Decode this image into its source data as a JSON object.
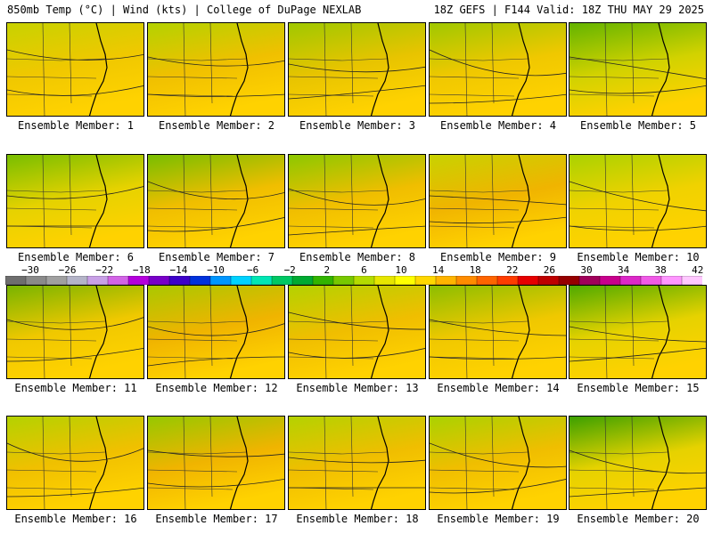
{
  "header": {
    "left": "850mb Temp (°C) | Wind (kts) | College of DuPage NEXLAB",
    "right": "18Z GEFS | F144 Valid: 18Z THU MAY 29 2025"
  },
  "members": [
    "Ensemble Member: 1",
    "Ensemble Member: 2",
    "Ensemble Member: 3",
    "Ensemble Member: 4",
    "Ensemble Member: 5",
    "Ensemble Member: 6",
    "Ensemble Member: 7",
    "Ensemble Member: 8",
    "Ensemble Member: 9",
    "Ensemble Member: 10",
    "Ensemble Member: 11",
    "Ensemble Member: 12",
    "Ensemble Member: 13",
    "Ensemble Member: 14",
    "Ensemble Member: 15",
    "Ensemble Member: 16",
    "Ensemble Member: 17",
    "Ensemble Member: 18",
    "Ensemble Member: 19",
    "Ensemble Member: 20"
  ],
  "colorbar": {
    "ticks": [
      "−30",
      "−26",
      "−22",
      "−18",
      "−14",
      "−10",
      "−6",
      "−2",
      "2",
      "6",
      "10",
      "14",
      "18",
      "22",
      "26",
      "30",
      "34",
      "38",
      "42"
    ],
    "colors": [
      "#6e6e6e",
      "#8a8a8a",
      "#a0a0a0",
      "#b4b4c8",
      "#c8a0e6",
      "#d264e6",
      "#b400dc",
      "#7800c8",
      "#3c00c8",
      "#0032dc",
      "#0096ff",
      "#00d2ff",
      "#00e6b4",
      "#00c864",
      "#00aa32",
      "#32b400",
      "#78c800",
      "#b4dc00",
      "#e6e600",
      "#ffff00",
      "#ffd700",
      "#ffb400",
      "#ff8c00",
      "#ff6400",
      "#ff3c00",
      "#e60000",
      "#be0000",
      "#960000",
      "#a0005a",
      "#c8008c",
      "#dc28c8",
      "#f05ae6",
      "#ff96ff",
      "#ffc8ff"
    ]
  }
}
